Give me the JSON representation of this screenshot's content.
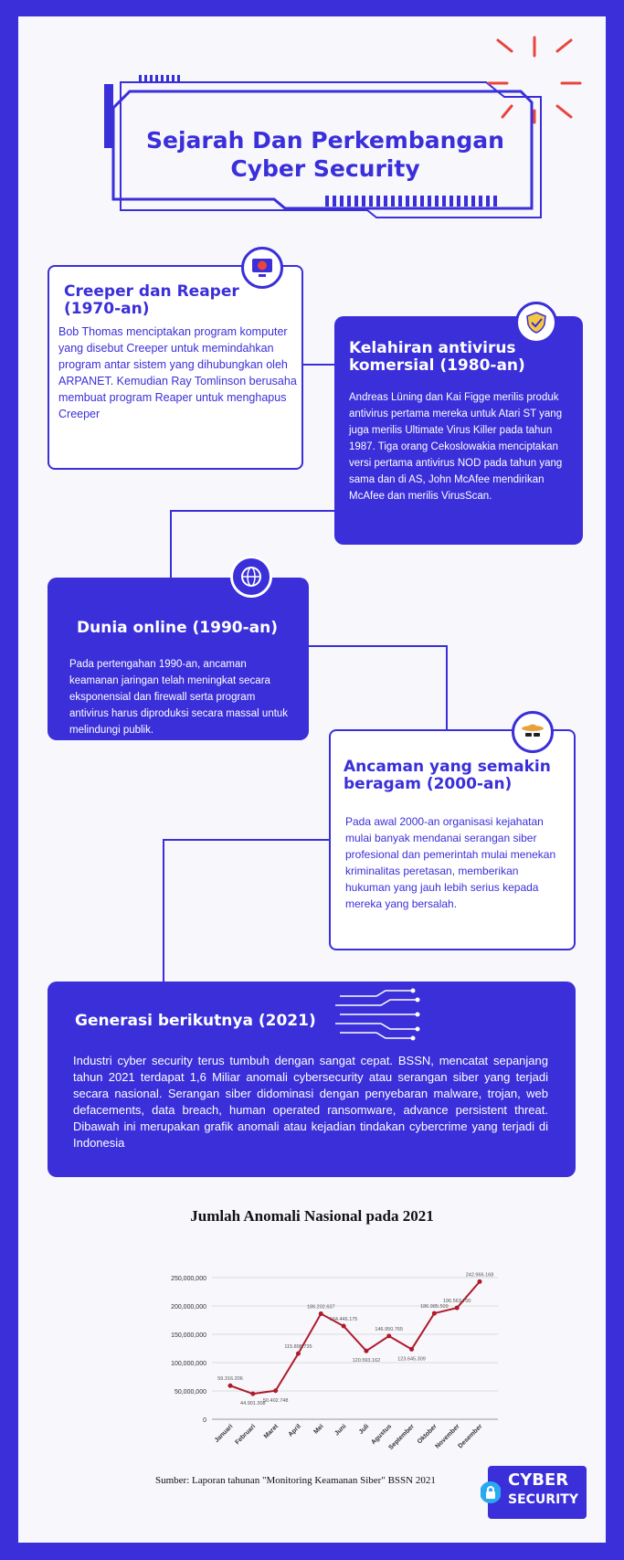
{
  "title": {
    "line1": "Sejarah Dan Perkembangan",
    "line2": "Cyber Security"
  },
  "sections": [
    {
      "title1": "Creeper dan Reaper",
      "title2": "(1970-an)",
      "text": "Bob Thomas menciptakan program komputer yang disebut Creeper untuk memindahkan program antar sistem yang dihubungkan oleh ARPANET. Kemudian Ray Tomlinson berusaha membuat program Reaper untuk menghapus Creeper",
      "icon": "virus-monitor-icon"
    },
    {
      "title1": "Kelahiran antivirus",
      "title2": "komersial (1980-an)",
      "text": "Andreas Lüning dan Kai Figge merilis produk antivirus pertama mereka untuk Atari ST yang juga merilis Ultimate Virus Killer pada tahun 1987. Tiga orang Cekoslowakia menciptakan versi pertama antivirus NOD pada tahun yang sama dan di AS, John McAfee mendirikan McAfee dan merilis VirusScan.",
      "icon": "shield-icon"
    },
    {
      "title1": "Dunia online (1990-an)",
      "text": "Pada pertengahan 1990-an, ancaman keamanan jaringan telah meningkat secara eksponensial dan firewall serta program antivirus harus diproduksi secara massal untuk melindungi publik.",
      "icon": "globe-cursor-icon"
    },
    {
      "title1": "Ancaman yang semakin",
      "title2": "beragam (2000-an)",
      "text": "Pada awal 2000-an organisasi kejahatan mulai banyak mendanai serangan siber profesional dan pemerintah mulai menekan kriminalitas peretasan, memberikan hukuman yang jauh lebih serius kepada mereka yang bersalah.",
      "icon": "hacker-icon"
    },
    {
      "title1": "Generasi berikutnya (2021)",
      "text": "Industri cyber security terus tumbuh dengan sangat cepat. BSSN, mencatat sepanjang tahun 2021 terdapat 1,6 Miliar anomali cybersecurity atau serangan siber yang terjadi secara nasional. Serangan siber didominasi dengan penyebaran malware, trojan, web defacements, data breach, human operated ransomware, advance persistent threat. Dibawah ini merupakan grafik anomali atau kejadian tindakan cybercrime yang terjadi di Indonesia",
      "icon": "circuit-icon"
    }
  ],
  "chart_data": {
    "type": "line",
    "title": "Jumlah Anomali Nasional pada 2021",
    "categories": [
      "Januari",
      "Februari",
      "Maret",
      "April",
      "Mei",
      "Juni",
      "Juli",
      "Agustus",
      "September",
      "Oktober",
      "November",
      "Desember"
    ],
    "values": [
      59316206,
      44901308,
      50402748,
      115898735,
      186202637,
      164446175,
      120593162,
      146950765,
      123645309,
      186985509,
      196563700,
      242966168
    ],
    "value_labels": [
      "59.316.206",
      "44.901.308",
      "50.402.748",
      "115.898.735",
      "186.202.637",
      "164.446.175",
      "120.593.162",
      "146.950.765",
      "123.645.309",
      "186.985.509",
      "196.563.700",
      "242.966.168"
    ],
    "ylim": [
      0,
      250000000
    ],
    "yticks": [
      "0",
      "50,000,000",
      "100,000,000",
      "150,000,000",
      "200,000,000",
      "250,000,000"
    ],
    "line_color": "#b0192a",
    "grid": true
  },
  "source": "Sumber: Laporan tahunan \"Monitoring Keamanan Siber\" BSSN 2021",
  "badge": {
    "line1": "CYBER",
    "line2": "SECURITY"
  },
  "colors": {
    "primary": "#3a2fd9",
    "accent_red": "#e8453c",
    "background": "#f7f7fc"
  }
}
